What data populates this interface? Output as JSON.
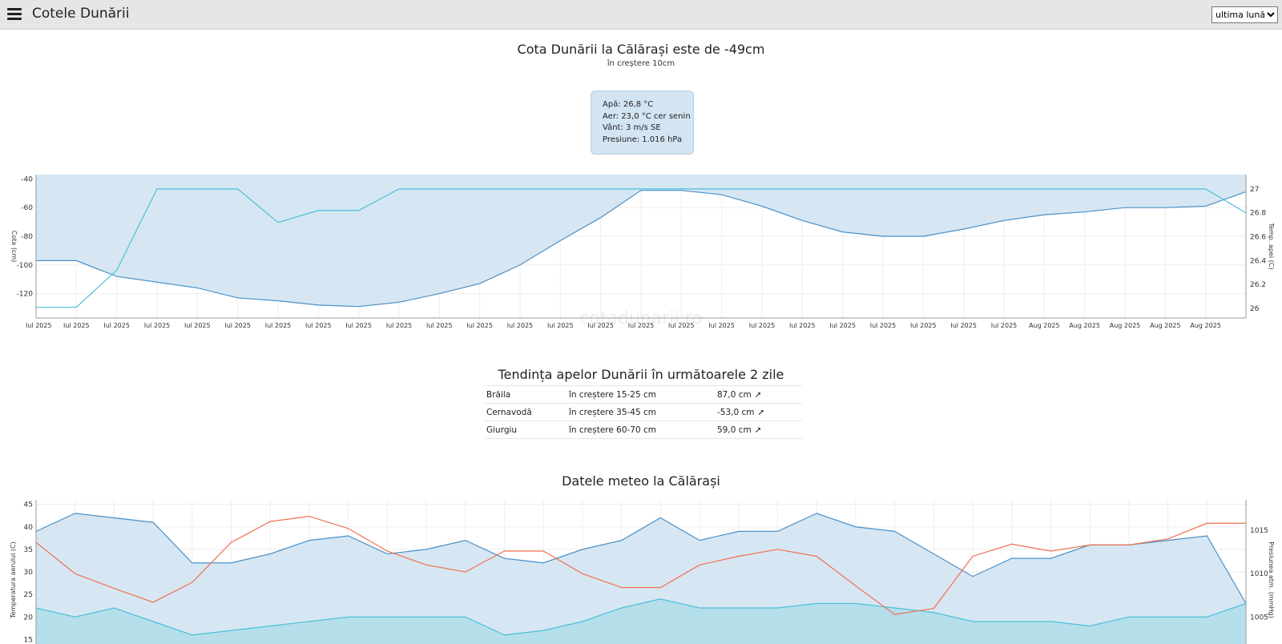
{
  "header": {
    "title": "Cotele Dunării",
    "period_options": [
      "ultima lună"
    ],
    "period_selected": "ultima lună"
  },
  "summary": {
    "headline": "Cota Dunării la Călărași este de -49cm",
    "subline": "în creștere 10cm"
  },
  "weather": {
    "water": "Apă: 26,8 °C",
    "air": "Aer: 23,0 °C cer senin",
    "wind": "Vânt: 3 m/s SE",
    "pressure": "Presiune: 1.016 hPa"
  },
  "trend": {
    "title": "Tendința apelor Dunării în următoarele 2 zile",
    "rows": [
      {
        "station": "Brăila",
        "trend": "în creștere 15-25 cm",
        "level": "87,0 cm",
        "arrow": "➚"
      },
      {
        "station": "Cernavodă",
        "trend": "în creștere 35-45 cm",
        "level": "-53,0 cm",
        "arrow": "➚"
      },
      {
        "station": "Giurgiu",
        "trend": "în creștere 60-70 cm",
        "level": "59,0 cm",
        "arrow": "➚"
      }
    ]
  },
  "meteo_title": "Datele meteo la Călărași",
  "colors": {
    "area_fill": "#d6e7f3",
    "level_line": "#4a90c8",
    "water_temp_line": "#4cc0d8",
    "air_temp_line": "#f07050",
    "min_temp_fill": "#b5dfeb"
  },
  "watermark": "cotadunarii.ro",
  "chart_data": [
    {
      "type": "line",
      "x": [
        "Iul 2025",
        "Iul 2025",
        "Iul 2025",
        "Iul 2025",
        "Iul 2025",
        "Iul 2025",
        "Iul 2025",
        "Iul 2025",
        "Iul 2025",
        "Iul 2025",
        "Iul 2025",
        "Iul 2025",
        "Iul 2025",
        "Iul 2025",
        "Iul 2025",
        "Iul 2025",
        "Iul 2025",
        "Iul 2025",
        "Iul 2025",
        "Iul 2025",
        "Iul 2025",
        "Iul 2025",
        "Iul 2025",
        "Iul 2025",
        "Iul 2025",
        "Aug 2025",
        "Aug 2025",
        "Aug 2025",
        "Aug 2025",
        "Aug 2025",
        "Aug 2025"
      ],
      "ylabel": "Cota (cm)",
      "y2label": "Temp. apei (C)",
      "ylim": [
        -137,
        -37
      ],
      "y_ticks": [
        -40,
        -60,
        -80,
        -100,
        -120
      ],
      "y2lim": [
        25.92,
        27.12
      ],
      "y2_ticks": [
        27,
        26.8,
        26.6,
        26.4,
        26.2,
        26
      ],
      "series": [
        {
          "axis": "left",
          "values": [
            -97,
            -97,
            -108,
            -112,
            -116,
            -123,
            -125,
            -128,
            -129,
            -126,
            -120,
            -113,
            -100,
            -83,
            -67,
            -48,
            -48,
            -51,
            -59,
            -69,
            -77,
            -80,
            -80,
            -75,
            -69,
            -65,
            -63,
            -60,
            -60,
            -59,
            -49
          ]
        },
        {
          "axis": "right",
          "values": [
            26.01,
            26.01,
            26.32,
            27.0,
            27.0,
            27.0,
            26.72,
            26.82,
            26.82,
            27.0,
            27.0,
            27.0,
            27.0,
            27.0,
            27.0,
            27.0,
            27.0,
            27.0,
            27.0,
            27.0,
            27.0,
            27.0,
            27.0,
            27.0,
            27.0,
            27.0,
            27.0,
            27.0,
            27.0,
            27.0,
            26.8
          ]
        }
      ]
    },
    {
      "type": "line",
      "ylabel": "Temperatura aerului (C)",
      "y2label": "Presiunea atm. (mmHg)",
      "ylim": [
        14,
        46
      ],
      "y_ticks": [
        45,
        40,
        35,
        30,
        25,
        20,
        15
      ],
      "y2lim": [
        1001.9,
        1018.5
      ],
      "y2_ticks": [
        1015,
        1010,
        1005
      ],
      "series": [
        {
          "axis": "left",
          "values": [
            39,
            43,
            42,
            41,
            32,
            32,
            34,
            37,
            38,
            34,
            35,
            37,
            33,
            32,
            35,
            37,
            42,
            37,
            39,
            39,
            43,
            40,
            39,
            34,
            29,
            33,
            33,
            36,
            36,
            37,
            38,
            23
          ]
        },
        {
          "axis": "left",
          "values": [
            22,
            20,
            22,
            19,
            16,
            17,
            18,
            19,
            20,
            20,
            20,
            20,
            16,
            17,
            19,
            22,
            24,
            22,
            22,
            22,
            23,
            23,
            22,
            21,
            19,
            19,
            19,
            18,
            20,
            20,
            20,
            23
          ]
        },
        {
          "axis": "right",
          "values": [
            1013.6,
            1010.0,
            1008.3,
            1006.7,
            1009.0,
            1013.6,
            1016.0,
            1016.6,
            1015.2,
            1012.6,
            1011.0,
            1010.2,
            1012.6,
            1012.6,
            1010.0,
            1008.4,
            1008.4,
            1011.0,
            1012.0,
            1012.8,
            1012.0,
            1008.6,
            1005.3,
            1006.0,
            1012.0,
            1013.4,
            1012.6,
            1013.3,
            1013.3,
            1014.0,
            1015.8,
            1015.8
          ]
        }
      ]
    }
  ]
}
